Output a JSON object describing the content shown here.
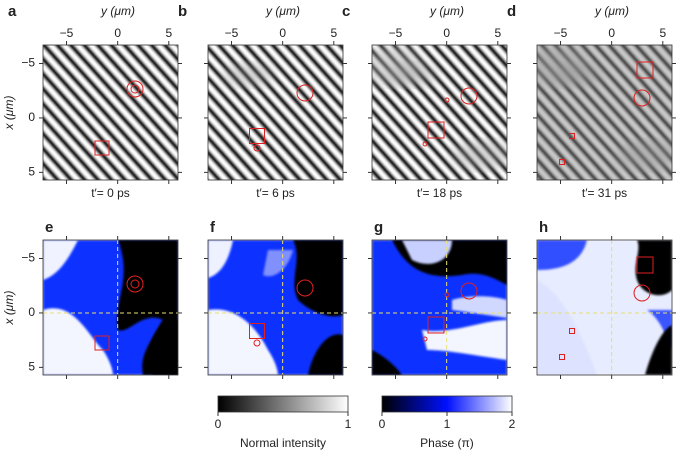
{
  "panels": [
    {
      "letter": "a",
      "caption": "t′= 0 ps"
    },
    {
      "letter": "b",
      "caption": "t′= 6 ps"
    },
    {
      "letter": "c",
      "caption": "t′= 18 ps"
    },
    {
      "letter": "d",
      "caption": "t′= 31 ps"
    },
    {
      "letter": "e"
    },
    {
      "letter": "f"
    },
    {
      "letter": "g"
    },
    {
      "letter": "h"
    }
  ],
  "axes": {
    "top_label": "y (μm)",
    "left_label": "x (μm)",
    "ticks": [
      {
        "value": -5,
        "label": "−5"
      },
      {
        "value": 0,
        "label": "0"
      },
      {
        "value": 5,
        "label": "5"
      }
    ],
    "xlim": [
      -7.3,
      5.9
    ],
    "ylim": [
      -6.7,
      5.7
    ]
  },
  "colorbars": [
    {
      "label": "Normal intensity",
      "lim": [
        0,
        1
      ],
      "ticks": [
        0,
        1
      ]
    },
    {
      "label": "Phase (π)",
      "lim": [
        0,
        2
      ],
      "ticks": [
        0,
        1,
        2
      ]
    }
  ]
}
